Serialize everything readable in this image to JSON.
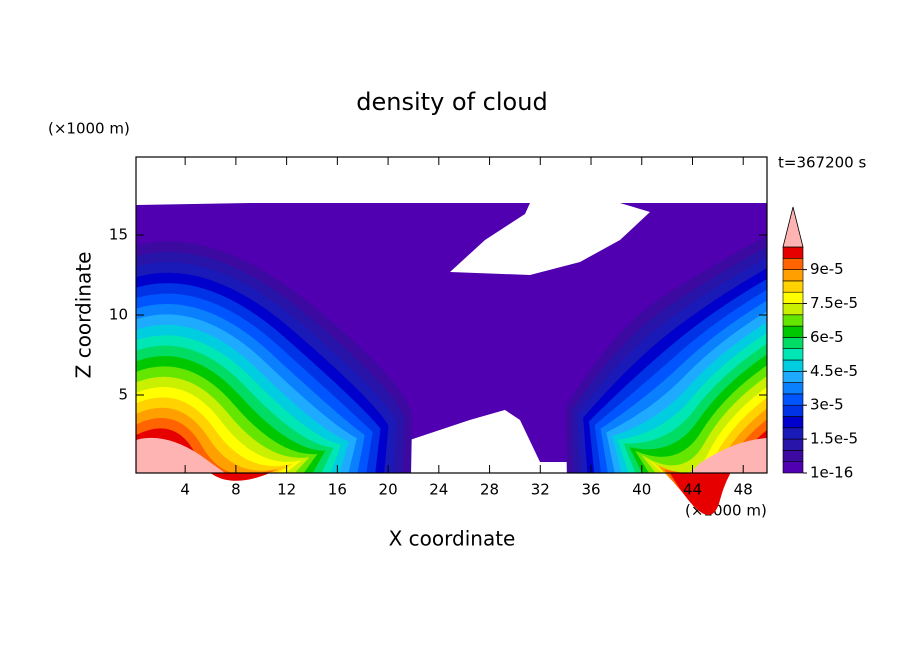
{
  "chart_data": {
    "type": "contour",
    "title": "density of cloud",
    "xlabel": "X coordinate",
    "ylabel": "Z coordinate",
    "xunit": "(×1000 m)",
    "yunit": "(×1000 m)",
    "time_label": "t=367200 s",
    "xlim": [
      0.125,
      49.875
    ],
    "ylim": [
      0.125,
      19.875
    ],
    "xticks": [
      4,
      8,
      12,
      16,
      20,
      24,
      28,
      32,
      36,
      40,
      44,
      48
    ],
    "yticks": [
      5,
      10,
      15
    ],
    "colorbar": {
      "clim": [
        1e-16,
        0.0001
      ],
      "colors": [
        "#5000b0",
        "#3c0aa0",
        "#2814a8",
        "#1a1ab8",
        "#0000cc",
        "#0032e6",
        "#0055ff",
        "#0a80ff",
        "#1eaaff",
        "#00cde0",
        "#00e6b4",
        "#00dc64",
        "#00c800",
        "#64e600",
        "#c8f000",
        "#ffff00",
        "#ffd200",
        "#ffa000",
        "#ff6400",
        "#e60000"
      ],
      "over_color": "#ffb4b4",
      "ticks": [
        {
          "value": 1e-16,
          "label": "1e-16"
        },
        {
          "value": 1.5e-05,
          "label": "1.5e-5"
        },
        {
          "value": 3e-05,
          "label": "3e-5"
        },
        {
          "value": 4.5e-05,
          "label": "4.5e-5"
        },
        {
          "value": 6e-05,
          "label": "6e-5"
        },
        {
          "value": 7.5e-05,
          "label": "7.5e-5"
        },
        {
          "value": 9e-05,
          "label": "9e-5"
        }
      ]
    }
  }
}
